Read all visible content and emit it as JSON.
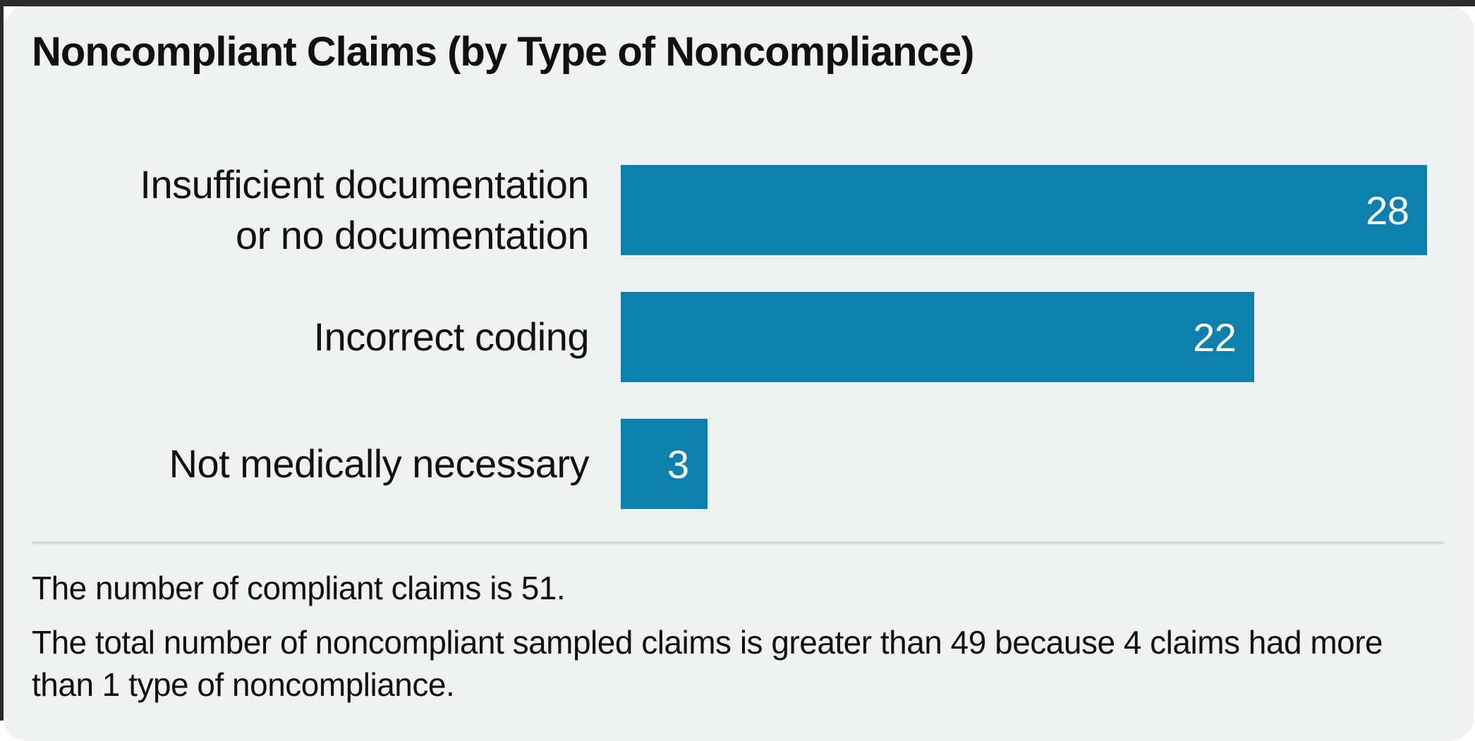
{
  "chart_data": {
    "type": "bar",
    "orientation": "horizontal",
    "title": "Noncompliant Claims (by Type of Noncompliance)",
    "categories": [
      "Insufficient documentation or no documentation",
      "Incorrect coding",
      "Not medically necessary"
    ],
    "label_display": [
      [
        "Insufficient documentation",
        "or no documentation"
      ],
      [
        "Incorrect coding"
      ],
      [
        "Not medically necessary"
      ]
    ],
    "values": [
      28,
      22,
      3
    ],
    "value_labels": [
      "28",
      "22",
      "3"
    ],
    "xlim": [
      0,
      28.75
    ],
    "xlabel": "",
    "ylabel": "",
    "grid": false,
    "legend": false,
    "bar_color": "#0e80ad",
    "value_label_color": "#ffffff"
  },
  "footnotes": {
    "compliant": "The number of compliant claims is 51.",
    "total_explanation": "The total number of noncompliant sampled claims is greater than 49 because 4 claims had more than 1 type of noncompliance."
  },
  "colors": {
    "frame": "#2b2b2b",
    "card_background": "#f0f2f1",
    "bar": "#0e80ad",
    "text": "#111111",
    "divider": "#d8dadb",
    "value_text": "#ffffff"
  }
}
